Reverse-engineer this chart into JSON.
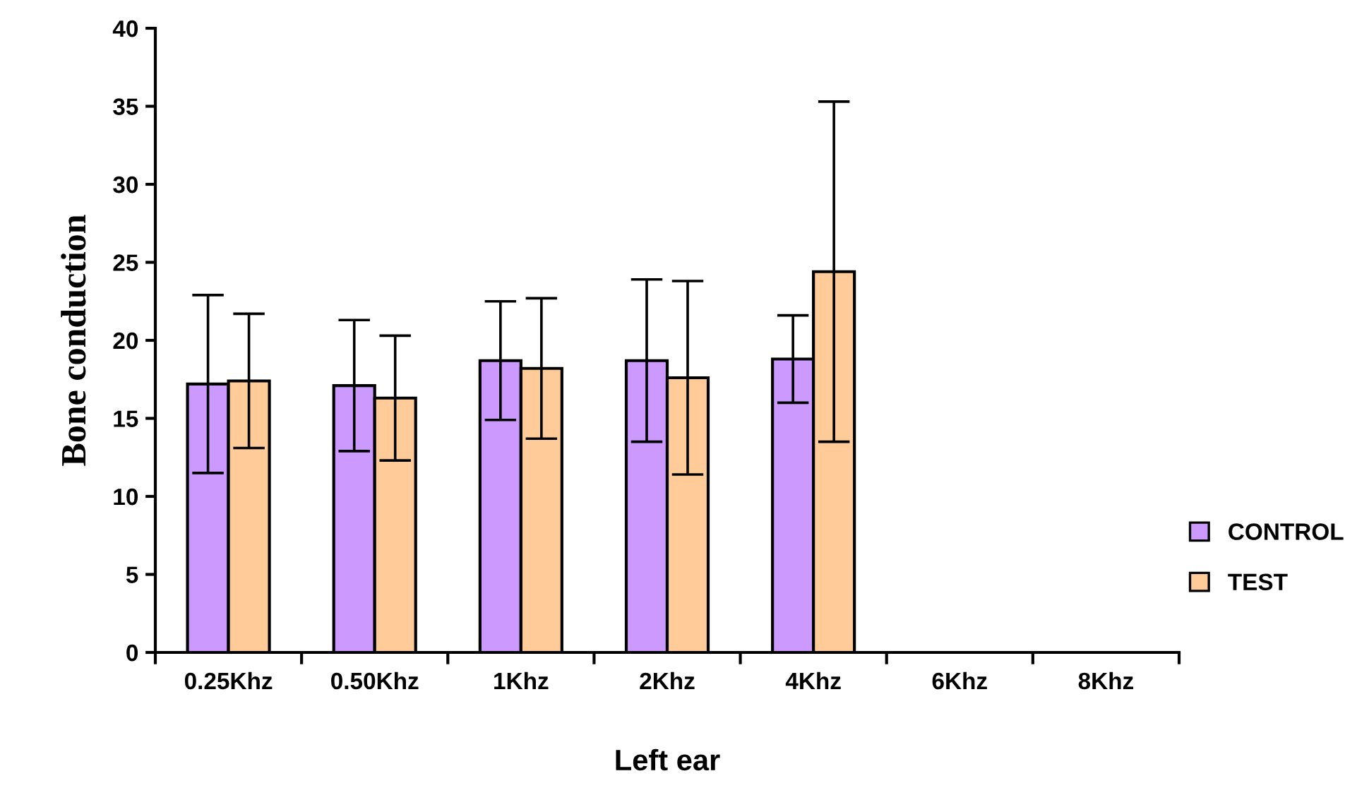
{
  "chart_data": {
    "type": "bar",
    "xlabel": "Left ear",
    "ylabel": "Bone conduction",
    "categories": [
      "0.25Khz",
      "0.50Khz",
      "1Khz",
      "2Khz",
      "4Khz",
      "6Khz",
      "8Khz"
    ],
    "series": [
      {
        "name": "CONTROL",
        "color": "#cc99ff",
        "values": [
          17.2,
          17.1,
          18.7,
          18.7,
          18.8,
          0,
          0
        ],
        "errors": [
          5.7,
          4.2,
          3.8,
          5.2,
          2.8,
          null,
          null
        ]
      },
      {
        "name": "TEST",
        "color": "#ffcc99",
        "values": [
          17.4,
          16.3,
          18.2,
          17.6,
          24.4,
          0,
          0
        ],
        "errors": [
          4.3,
          4.0,
          4.5,
          6.2,
          10.9,
          null,
          null
        ]
      }
    ],
    "ylim": [
      0,
      40
    ],
    "yticks": [
      0,
      5,
      10,
      15,
      20,
      25,
      30,
      35,
      40
    ],
    "grid": false,
    "legend": "right"
  }
}
